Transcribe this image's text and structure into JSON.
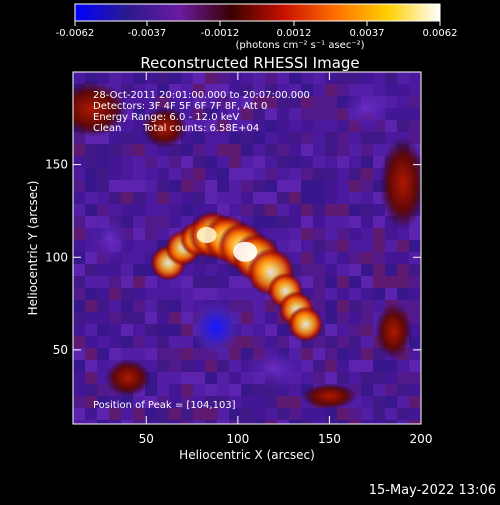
{
  "chart_data": {
    "type": "heatmap",
    "title": "Reconstructed RHESSI Image",
    "xlabel": "Heliocentric X (arcsec)",
    "ylabel": "Heliocentric Y (arcsec)",
    "xlim": [
      10,
      200
    ],
    "ylim": [
      10,
      200
    ],
    "xticks": [
      50,
      100,
      150,
      200
    ],
    "yticks": [
      50,
      100,
      150
    ],
    "colorbar": {
      "label": "(photons cm⁻² s⁻¹ asec⁻²)",
      "ticks": [
        "-0.0062",
        "-0.0037",
        "-0.0012",
        "0.0012",
        "0.0037",
        "0.0062"
      ],
      "min": -0.0062,
      "max": 0.0062,
      "colors": [
        "#0000ff",
        "#2a1a8c",
        "#6a1aa0",
        "#3a0000",
        "#c81000",
        "#ff7000",
        "#ffd000",
        "#ffffff"
      ]
    },
    "annotations": [
      "28-Oct-2011 20:01:00.000 to 20:07:00.000",
      "Detectors: 3F 4F 5F 6F 7F 8F, Att 0",
      "Energy Range: 6.0 - 12.0 keV",
      "Clean",
      "Total counts: 6.58E+04"
    ],
    "peak_label": "Position of Peak = [104,103]",
    "peak": [
      104,
      103
    ],
    "sources": [
      {
        "name": "loop",
        "x": 104,
        "y": 103,
        "intensity": 0.0062
      },
      {
        "name": "hole",
        "x": 88,
        "y": 62,
        "intensity": -0.005
      },
      {
        "name": "edge",
        "x": 190,
        "y": 110,
        "intensity": 0.002
      }
    ]
  },
  "footer_timestamp": "15-May-2022 13:06"
}
